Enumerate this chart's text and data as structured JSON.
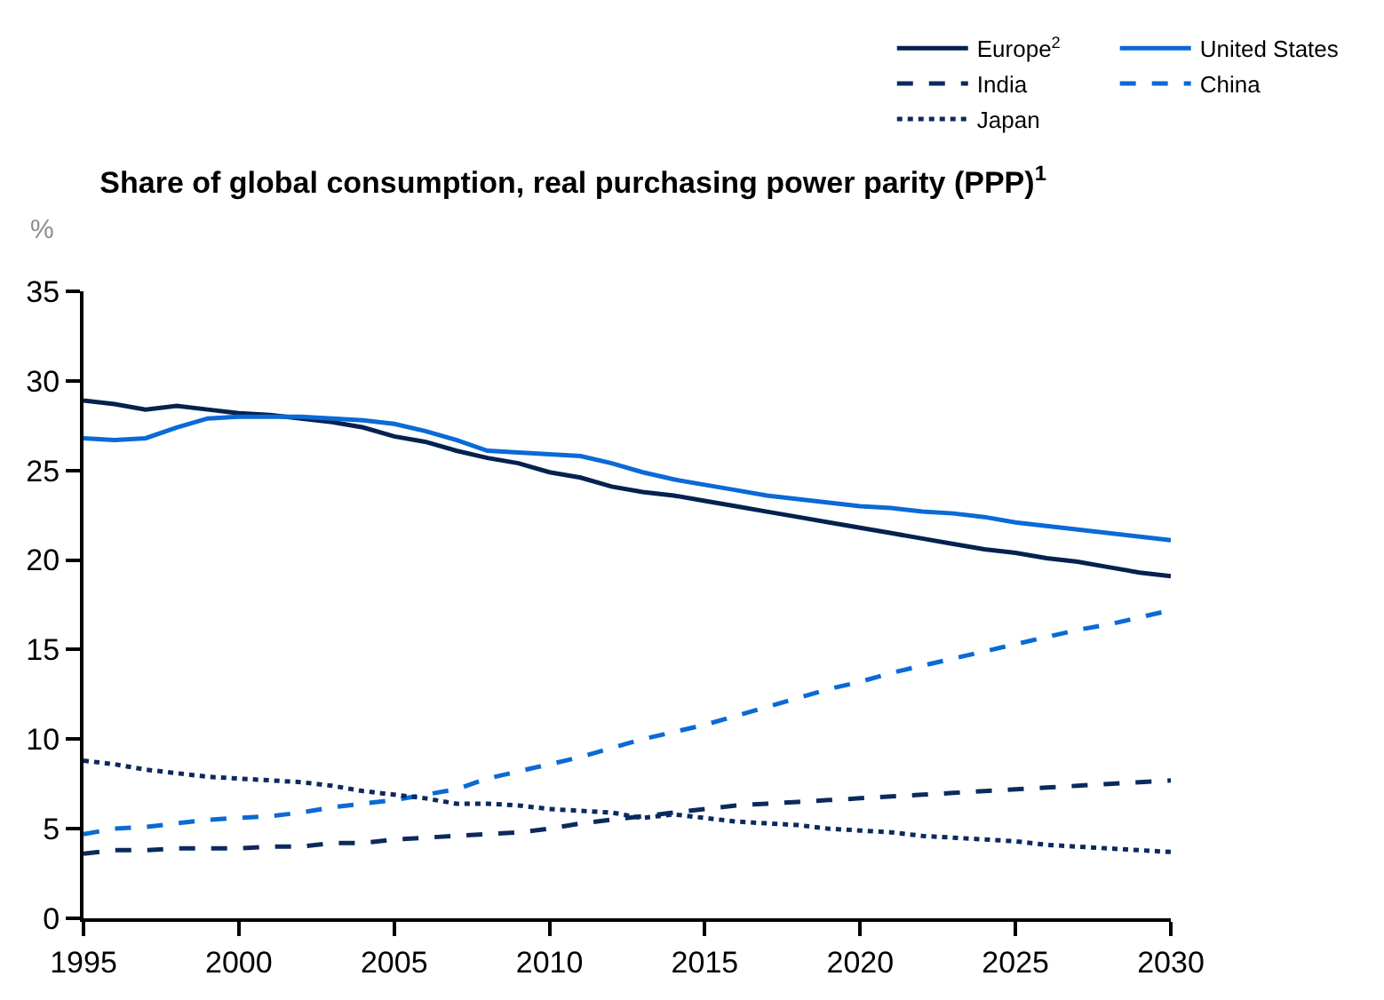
{
  "chart_data": {
    "type": "line",
    "title": "Share of global consumption, real purchasing power parity (PPP)$^{1}$",
    "ylabel": "%",
    "x": [
      1995,
      1996,
      1997,
      1998,
      1999,
      2000,
      2001,
      2002,
      2003,
      2004,
      2005,
      2006,
      2007,
      2008,
      2009,
      2010,
      2011,
      2012,
      2013,
      2014,
      2015,
      2016,
      2017,
      2018,
      2019,
      2020,
      2021,
      2022,
      2023,
      2024,
      2025,
      2026,
      2027,
      2028,
      2029,
      2030
    ],
    "series": [
      {
        "name": "Europe$^{2}$",
        "color": "#04214f",
        "line_style": "solid",
        "values": [
          28.9,
          28.7,
          28.4,
          28.6,
          28.4,
          28.2,
          28.1,
          27.9,
          27.7,
          27.4,
          26.9,
          26.6,
          26.1,
          25.7,
          25.4,
          24.9,
          24.6,
          24.1,
          23.8,
          23.6,
          23.3,
          23.0,
          22.7,
          22.4,
          22.1,
          21.8,
          21.5,
          21.2,
          20.9,
          20.6,
          20.4,
          20.1,
          19.9,
          19.6,
          19.3,
          19.1
        ]
      },
      {
        "name": "United States",
        "color": "#0a6ad6",
        "line_style": "solid",
        "values": [
          26.8,
          26.7,
          26.8,
          27.4,
          27.9,
          28.0,
          28.0,
          28.0,
          27.9,
          27.8,
          27.6,
          27.2,
          26.7,
          26.1,
          26.0,
          25.9,
          25.8,
          25.4,
          24.9,
          24.5,
          24.2,
          23.9,
          23.6,
          23.4,
          23.2,
          23.0,
          22.9,
          22.7,
          22.6,
          22.4,
          22.1,
          21.9,
          21.7,
          21.5,
          21.3,
          21.1
        ]
      },
      {
        "name": "India",
        "color": "#0b2a5c",
        "line_style": "dashed",
        "values": [
          3.6,
          3.8,
          3.8,
          3.9,
          3.9,
          3.9,
          4.0,
          4.0,
          4.2,
          4.2,
          4.4,
          4.5,
          4.6,
          4.7,
          4.8,
          5.0,
          5.3,
          5.5,
          5.7,
          5.9,
          6.1,
          6.3,
          6.4,
          6.5,
          6.6,
          6.7,
          6.8,
          6.9,
          7.0,
          7.1,
          7.2,
          7.3,
          7.4,
          7.5,
          7.6,
          7.7
        ]
      },
      {
        "name": "China",
        "color": "#0a6ad6",
        "line_style": "dashed",
        "values": [
          4.7,
          5.0,
          5.1,
          5.3,
          5.5,
          5.6,
          5.7,
          5.9,
          6.2,
          6.4,
          6.6,
          6.9,
          7.2,
          7.8,
          8.2,
          8.6,
          9.0,
          9.5,
          10.0,
          10.4,
          10.8,
          11.3,
          11.8,
          12.3,
          12.8,
          13.2,
          13.7,
          14.1,
          14.5,
          14.9,
          15.3,
          15.7,
          16.1,
          16.4,
          16.8,
          17.2
        ]
      },
      {
        "name": "Japan",
        "color": "#0b2a5c",
        "line_style": "dotted",
        "values": [
          8.8,
          8.6,
          8.3,
          8.1,
          7.9,
          7.8,
          7.7,
          7.6,
          7.4,
          7.1,
          6.9,
          6.7,
          6.4,
          6.4,
          6.3,
          6.1,
          6.0,
          5.9,
          5.6,
          5.8,
          5.6,
          5.4,
          5.3,
          5.2,
          5.0,
          4.9,
          4.8,
          4.6,
          4.5,
          4.4,
          4.3,
          4.1,
          4.0,
          3.9,
          3.8,
          3.7
        ]
      }
    ],
    "xlim": [
      1995,
      2030
    ],
    "xticks": [
      1995,
      2000,
      2005,
      2010,
      2015,
      2020,
      2025,
      2030
    ],
    "ylim": [
      0,
      35
    ],
    "yticks": [
      0,
      5,
      10,
      15,
      20,
      25,
      30,
      35
    ],
    "legend": "top right",
    "marker": "none"
  }
}
